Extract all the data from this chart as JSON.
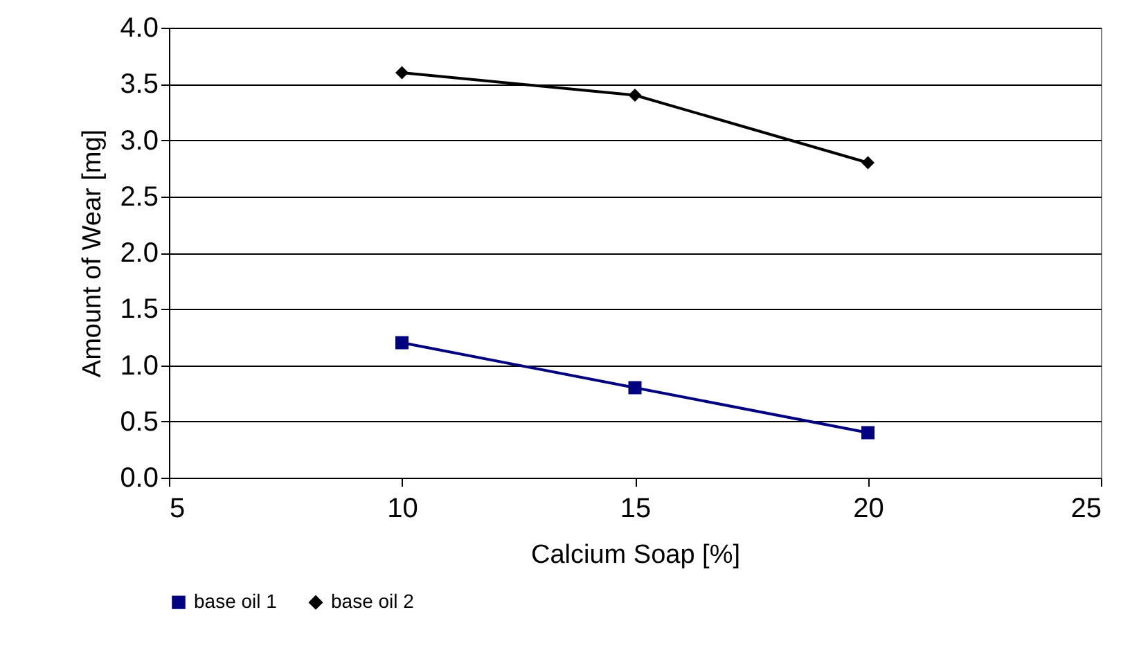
{
  "chart_data": {
    "type": "line",
    "xlabel": "Calcium Soap [%]",
    "ylabel": "Amount of Wear [mg]",
    "x": [
      10,
      15,
      20
    ],
    "series": [
      {
        "name": "base oil 1",
        "color": "#000080",
        "marker": "square",
        "values": [
          1.2,
          0.8,
          0.4
        ]
      },
      {
        "name": "base oil 2",
        "color": "#000000",
        "marker": "diamond",
        "values": [
          3.6,
          3.4,
          2.8
        ]
      }
    ],
    "xlim": [
      5,
      25
    ],
    "xticks": [
      5,
      10,
      15,
      20,
      25
    ],
    "ylim": [
      0,
      4
    ],
    "yticks": [
      {
        "value": 0,
        "label": "0.0"
      },
      {
        "value": 0.5,
        "label": "0.5"
      },
      {
        "value": 1,
        "label": "1.0"
      },
      {
        "value": 1.5,
        "label": "1.5"
      },
      {
        "value": 2,
        "label": "2.0"
      },
      {
        "value": 2.5,
        "label": "2.5"
      },
      {
        "value": 3,
        "label": "3.0"
      },
      {
        "value": 3.5,
        "label": "3.5"
      },
      {
        "value": 4,
        "label": "4.0"
      }
    ],
    "grid": "y",
    "legend": "bottom",
    "line_style": "solid"
  }
}
